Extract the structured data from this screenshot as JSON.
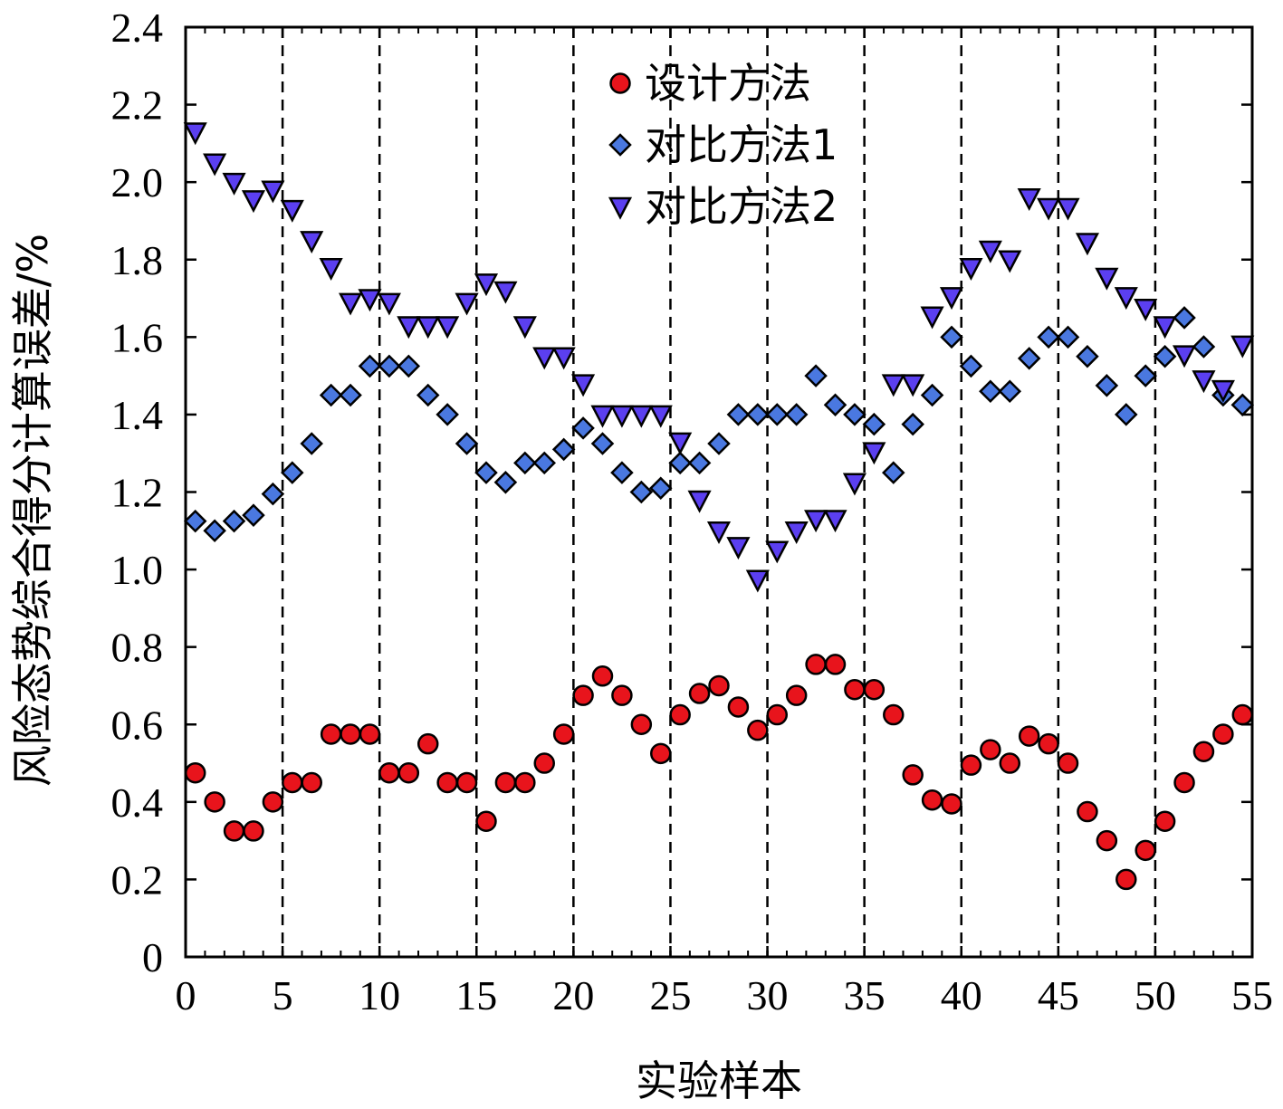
{
  "chart_data": {
    "type": "scatter",
    "xlabel": "实验样本",
    "ylabel": "风险态势综合得分计算误差/%",
    "xlim": [
      0,
      55
    ],
    "ylim": [
      0,
      2.4
    ],
    "xticks": [
      "0",
      "5",
      "10",
      "15",
      "20",
      "25",
      "30",
      "35",
      "40",
      "45",
      "50",
      "55"
    ],
    "yticks": [
      "0",
      "0.2",
      "0.4",
      "0.6",
      "0.8",
      "1.0",
      "1.2",
      "1.4",
      "1.6",
      "1.8",
      "2.0",
      "2.2",
      "2.4"
    ],
    "vertical_dashed_lines": [
      5,
      10,
      15,
      20,
      25,
      30,
      35,
      40,
      45,
      50
    ],
    "grid": false,
    "legend_position": "top-center",
    "series": [
      {
        "name": "设计方法",
        "marker": "circle",
        "color": "#e8141c",
        "x": [
          0.5,
          1.5,
          2.5,
          3.5,
          4.5,
          5.5,
          6.5,
          7.5,
          8.5,
          9.5,
          10.5,
          11.5,
          12.5,
          13.5,
          14.5,
          15.5,
          16.5,
          17.5,
          18.5,
          19.5,
          20.5,
          21.5,
          22.5,
          23.5,
          24.5,
          25.5,
          26.5,
          27.5,
          28.5,
          29.5,
          30.5,
          31.5,
          32.5,
          33.5,
          34.5,
          35.5,
          36.5,
          37.5,
          38.5,
          39.5,
          40.5,
          41.5,
          42.5,
          43.5,
          44.5,
          45.5,
          46.5,
          47.5,
          48.5,
          49.5,
          50.5,
          51.5,
          52.5,
          53.5,
          54.5
        ],
        "y": [
          0.475,
          0.4,
          0.325,
          0.325,
          0.4,
          0.45,
          0.45,
          0.575,
          0.575,
          0.575,
          0.475,
          0.475,
          0.55,
          0.45,
          0.45,
          0.35,
          0.45,
          0.45,
          0.5,
          0.575,
          0.675,
          0.725,
          0.675,
          0.6,
          0.525,
          0.625,
          0.68,
          0.7,
          0.645,
          0.585,
          0.625,
          0.675,
          0.755,
          0.755,
          0.69,
          0.69,
          0.625,
          0.47,
          0.405,
          0.395,
          0.495,
          0.535,
          0.5,
          0.57,
          0.55,
          0.5,
          0.375,
          0.3,
          0.2,
          0.275,
          0.35,
          0.45,
          0.53,
          0.575,
          0.625
        ]
      },
      {
        "name": "对比方法1",
        "marker": "diamond",
        "color": "#4a78e0",
        "x": [
          0.5,
          1.5,
          2.5,
          3.5,
          4.5,
          5.5,
          6.5,
          7.5,
          8.5,
          9.5,
          10.5,
          11.5,
          12.5,
          13.5,
          14.5,
          15.5,
          16.5,
          17.5,
          18.5,
          19.5,
          20.5,
          21.5,
          22.5,
          23.5,
          24.5,
          25.5,
          26.5,
          27.5,
          28.5,
          29.5,
          30.5,
          31.5,
          32.5,
          33.5,
          34.5,
          35.5,
          36.5,
          37.5,
          38.5,
          39.5,
          40.5,
          41.5,
          42.5,
          43.5,
          44.5,
          45.5,
          46.5,
          47.5,
          48.5,
          49.5,
          50.5,
          51.5,
          52.5,
          53.5,
          54.5
        ],
        "y": [
          1.125,
          1.1,
          1.125,
          1.14,
          1.195,
          1.25,
          1.325,
          1.45,
          1.45,
          1.525,
          1.525,
          1.525,
          1.45,
          1.4,
          1.325,
          1.25,
          1.225,
          1.275,
          1.275,
          1.31,
          1.365,
          1.325,
          1.25,
          1.2,
          1.21,
          1.275,
          1.275,
          1.325,
          1.4,
          1.4,
          1.4,
          1.4,
          1.5,
          1.425,
          1.4,
          1.375,
          1.25,
          1.375,
          1.45,
          1.6,
          1.525,
          1.46,
          1.46,
          1.545,
          1.6,
          1.6,
          1.55,
          1.475,
          1.4,
          1.5,
          1.55,
          1.65,
          1.575,
          1.45,
          1.425
        ]
      },
      {
        "name": "对比方法2",
        "marker": "triangle-down",
        "color": "#5b3ff0",
        "x": [
          0.5,
          1.5,
          2.5,
          3.5,
          4.5,
          5.5,
          6.5,
          7.5,
          8.5,
          9.5,
          10.5,
          11.5,
          12.5,
          13.5,
          14.5,
          15.5,
          16.5,
          17.5,
          18.5,
          19.5,
          20.5,
          21.5,
          22.5,
          23.5,
          24.5,
          25.5,
          26.5,
          27.5,
          28.5,
          29.5,
          30.5,
          31.5,
          32.5,
          33.5,
          34.5,
          35.5,
          36.5,
          37.5,
          38.5,
          39.5,
          40.5,
          41.5,
          42.5,
          43.5,
          44.5,
          45.5,
          46.5,
          47.5,
          48.5,
          49.5,
          50.5,
          51.5,
          52.5,
          53.5,
          54.5
        ],
        "y": [
          2.13,
          2.05,
          2.0,
          1.955,
          1.98,
          1.93,
          1.85,
          1.78,
          1.69,
          1.7,
          1.69,
          1.63,
          1.63,
          1.63,
          1.69,
          1.74,
          1.72,
          1.63,
          1.55,
          1.55,
          1.48,
          1.4,
          1.4,
          1.4,
          1.4,
          1.33,
          1.18,
          1.1,
          1.06,
          0.975,
          1.05,
          1.1,
          1.13,
          1.13,
          1.225,
          1.305,
          1.48,
          1.48,
          1.655,
          1.705,
          1.78,
          1.825,
          1.8,
          1.96,
          1.935,
          1.935,
          1.845,
          1.755,
          1.705,
          1.675,
          1.63,
          1.555,
          1.49,
          1.465,
          1.58
        ]
      }
    ]
  }
}
